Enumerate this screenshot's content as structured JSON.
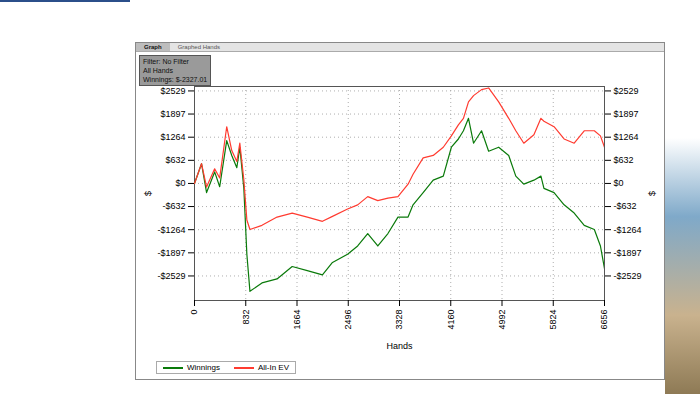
{
  "chart_data": {
    "type": "line",
    "tabs": [
      "Graph",
      "Graphed Hands"
    ],
    "annotations": [
      "Filter: No Filter",
      "All Hands",
      "Winnings: $-2327.01"
    ],
    "x_label": "Hands",
    "y_label": "$",
    "x": [
      0,
      114,
      196,
      327,
      409,
      523,
      605,
      687,
      736,
      801,
      850,
      900,
      1095,
      1340,
      1586,
      1831,
      2077,
      2240,
      2485,
      2649,
      2812,
      2976,
      3140,
      3303,
      3467,
      3548,
      3712,
      3875,
      4039,
      4170,
      4284,
      4366,
      4448,
      4530,
      4660,
      4775,
      4938,
      5101,
      5216,
      5346,
      5510,
      5624,
      5673,
      5837,
      6000,
      6164,
      6327,
      6491,
      6590,
      6656
    ],
    "series": [
      {
        "name": "Winnings",
        "color": "#0a7a0a",
        "values": [
          0,
          540,
          -250,
          315,
          -90,
          1170,
          765,
          430,
          990,
          -135,
          -1935,
          -2950,
          -2720,
          -2610,
          -2270,
          -2385,
          -2500,
          -2160,
          -1935,
          -1710,
          -1370,
          -1710,
          -1370,
          -920,
          -920,
          -585,
          -250,
          90,
          200,
          990,
          1215,
          1440,
          1780,
          1100,
          1440,
          880,
          990,
          765,
          200,
          -20,
          90,
          200,
          -135,
          -250,
          -585,
          -810,
          -1145,
          -1260,
          -1710,
          -2327
        ]
      },
      {
        "name": "All-In EV",
        "color": "#ff3b30",
        "values": [
          0,
          540,
          -100,
          400,
          150,
          1550,
          900,
          600,
          1100,
          100,
          -1000,
          -1260,
          -1145,
          -920,
          -810,
          -920,
          -1035,
          -900,
          -700,
          -585,
          -360,
          -470,
          -400,
          -360,
          -20,
          250,
          700,
          765,
          990,
          1300,
          1600,
          1780,
          2230,
          2400,
          2565,
          2610,
          2230,
          1780,
          1440,
          1100,
          1330,
          1780,
          1700,
          1550,
          1215,
          1100,
          1440,
          1440,
          1300,
          990
        ]
      }
    ],
    "xlim": [
      0,
      6656
    ],
    "xticks": [
      0,
      832,
      1664,
      2496,
      3328,
      4160,
      4992,
      5824,
      6656
    ],
    "ylim": [
      -3200,
      2650
    ],
    "yticks": [
      {
        "value": -2529,
        "label": "-$2529"
      },
      {
        "value": -1897,
        "label": "-$1897"
      },
      {
        "value": -1264,
        "label": "-$1264"
      },
      {
        "value": -632,
        "label": "-$632"
      },
      {
        "value": 0,
        "label": "$0"
      },
      {
        "value": 632,
        "label": "$632"
      },
      {
        "value": 1264,
        "label": "$1264"
      },
      {
        "value": 1897,
        "label": "$1897"
      },
      {
        "value": 2529,
        "label": "$2529"
      }
    ],
    "grid": true,
    "legend": "bottom-left"
  }
}
